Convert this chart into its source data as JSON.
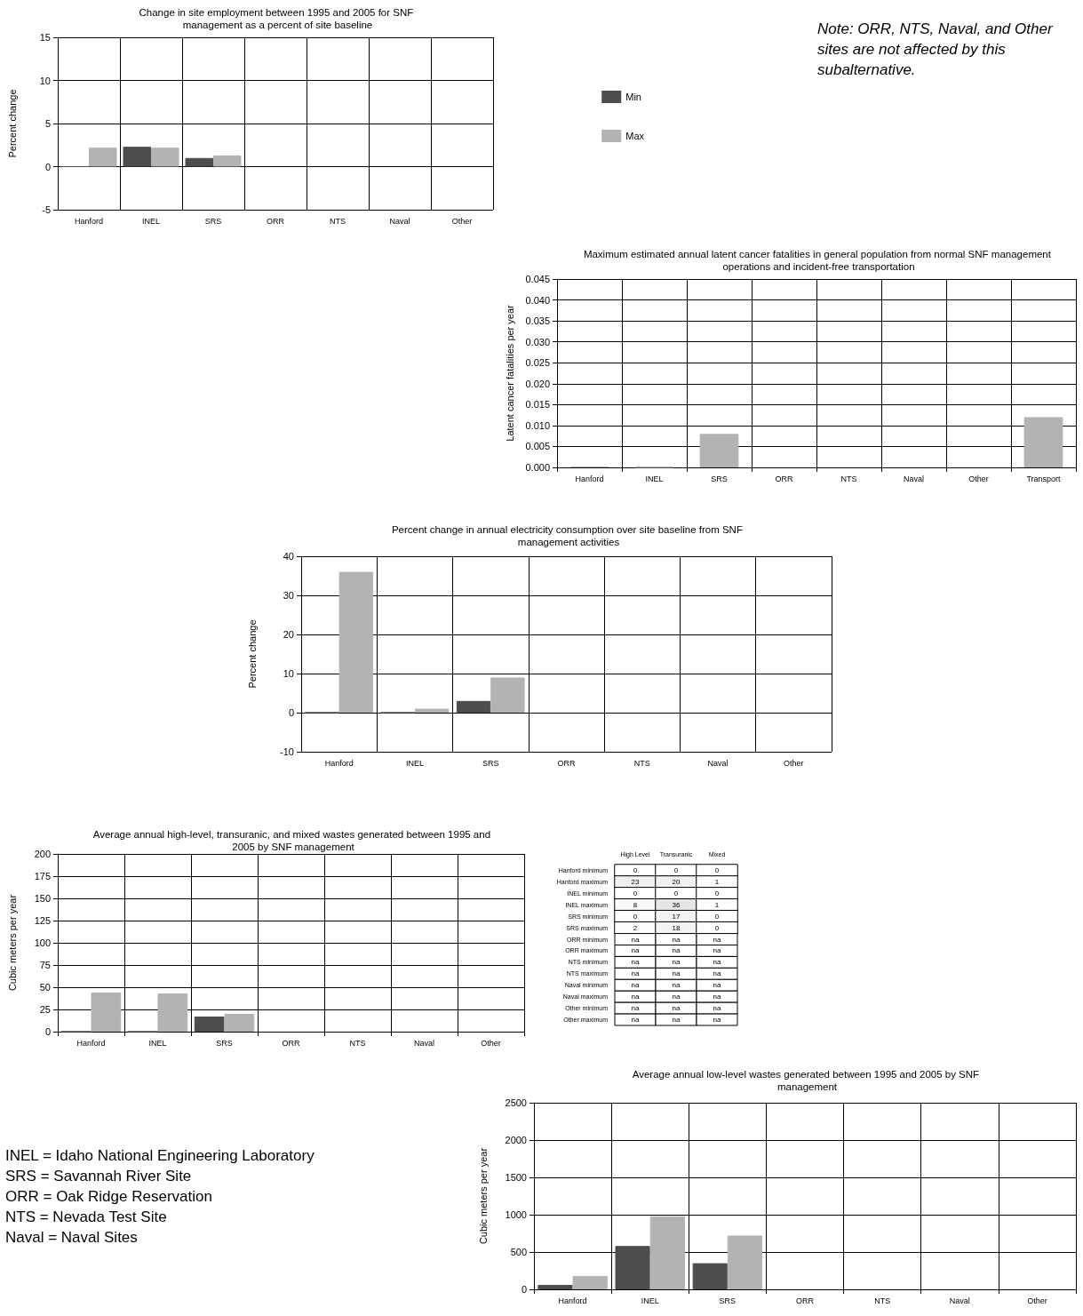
{
  "chart_data": [
    {
      "type": "bar",
      "title": "Change in site employment between 1995 and 2005 for SNF management as a percent of site baseline",
      "ylabel": "Percent change",
      "categories": [
        "Hanford",
        "INEL",
        "SRS",
        "ORR",
        "NTS",
        "Naval",
        "Other"
      ],
      "series": [
        {
          "name": "Min",
          "color": "#4d4d4d",
          "values": [
            0,
            2.3,
            1.0,
            null,
            null,
            null,
            null
          ]
        },
        {
          "name": "Max",
          "color": "#b3b3b3",
          "values": [
            2.2,
            2.2,
            1.3,
            null,
            null,
            null,
            null
          ]
        }
      ],
      "ylim": [
        -5,
        15
      ],
      "yticks": [
        -5,
        0,
        5,
        10,
        15
      ],
      "grid": true,
      "legend": "right"
    },
    {
      "type": "other",
      "annotations": [
        "Note: ORR, NTS, Naval, and Other sites are not affected by this subalternative."
      ]
    },
    {
      "type": "bar",
      "title": "Maximum estimated annual latent cancer fatalities in general population from normal SNF management operations and incident-free transportation",
      "ylabel": "Latent cancer fatalities per year",
      "categories": [
        "Hanford",
        "INEL",
        "SRS",
        "ORR",
        "NTS",
        "Naval",
        "Other",
        "Transport"
      ],
      "values": [
        0.0002,
        0.0001,
        0.008,
        null,
        null,
        null,
        null,
        0.012
      ],
      "color": "#b3b3b3",
      "ylim": [
        0,
        0.045
      ],
      "yticks": [
        {
          "value": 0,
          "label": "0.000"
        },
        {
          "value": 0.005,
          "label": "0.005"
        },
        {
          "value": 0.01,
          "label": "0.010"
        },
        {
          "value": 0.015,
          "label": "0.015"
        },
        {
          "value": 0.02,
          "label": "0.020"
        },
        {
          "value": 0.025,
          "label": "0.025"
        },
        {
          "value": 0.03,
          "label": "0.030"
        },
        {
          "value": 0.035,
          "label": "0.035"
        },
        {
          "value": 0.04,
          "label": "0.040"
        },
        {
          "value": 0.045,
          "label": "0.045"
        }
      ],
      "grid": true
    },
    {
      "type": "bar",
      "title": "Percent change in annual electricity consumption over site baseline from SNF management activities",
      "ylabel": "Percent change",
      "categories": [
        "Hanford",
        "INEL",
        "SRS",
        "ORR",
        "NTS",
        "Naval",
        "Other"
      ],
      "series": [
        {
          "color": "#4d4d4d",
          "values": [
            0,
            0,
            3,
            null,
            null,
            null,
            null
          ]
        },
        {
          "color": "#b3b3b3",
          "values": [
            36,
            1,
            9,
            null,
            null,
            null,
            null
          ]
        }
      ],
      "ylim": [
        -10,
        40
      ],
      "yticks": [
        -10,
        0,
        10,
        20,
        30,
        40
      ],
      "grid": true
    },
    {
      "type": "bar",
      "title": "Average annual high-level, transuranic, and mixed wastes generated between 1995 and 2005 by SNF management",
      "ylabel": "Cubic meters per year",
      "categories": [
        "Hanford",
        "INEL",
        "SRS",
        "ORR",
        "NTS",
        "Naval",
        "Other"
      ],
      "series": [
        {
          "color": "#4d4d4d",
          "values": [
            0,
            0,
            17,
            null,
            null,
            null,
            null
          ]
        },
        {
          "color": "#b3b3b3",
          "values": [
            44,
            43,
            20,
            null,
            null,
            null,
            null
          ]
        }
      ],
      "ylim": [
        0,
        200
      ],
      "yticks": [
        0,
        25,
        50,
        75,
        100,
        125,
        150,
        175,
        200
      ],
      "grid": true
    },
    {
      "type": "heatmap",
      "data_labels": true,
      "categories": [
        "High Level",
        "Transuranic",
        "Mixed"
      ],
      "y_categories": [
        "Hanford minimum",
        "Hanford maximum",
        "INEL minimum",
        "INEL maximum",
        "SRS minimum",
        "SRS maximum",
        "ORR minimum",
        "ORR maximum",
        "NTS minimum",
        "NTS maximum",
        "Naval minimum",
        "Naval maximum",
        "Other minimum",
        "Other maximum"
      ],
      "cells": [
        [
          0,
          0,
          0
        ],
        [
          23,
          20,
          1
        ],
        [
          0,
          0,
          0
        ],
        [
          8,
          36,
          1
        ],
        [
          0,
          17,
          0
        ],
        [
          2,
          18,
          0
        ],
        [
          null,
          null,
          null
        ],
        [
          null,
          null,
          null
        ],
        [
          null,
          null,
          null
        ],
        [
          null,
          null,
          null
        ],
        [
          null,
          null,
          null
        ],
        [
          null,
          null,
          null
        ],
        [
          null,
          null,
          null
        ],
        [
          null,
          null,
          null
        ]
      ],
      "cell_labels": [
        [
          "0",
          "0",
          "0"
        ],
        [
          "23",
          "20",
          "1"
        ],
        [
          "0",
          "0",
          "0"
        ],
        [
          "8",
          "36",
          "1"
        ],
        [
          "0",
          "17",
          "0"
        ],
        [
          "2",
          "18",
          "0"
        ],
        [
          "na",
          "na",
          "na"
        ],
        [
          "na",
          "na",
          "na"
        ],
        [
          "na",
          "na",
          "na"
        ],
        [
          "na",
          "na",
          "na"
        ],
        [
          "na",
          "na",
          "na"
        ],
        [
          "na",
          "na",
          "na"
        ],
        [
          "na",
          "na",
          "na"
        ],
        [
          "na",
          "na",
          "na"
        ]
      ]
    },
    {
      "type": "other",
      "annotations": [
        "INEL = Idaho National Engineering Laboratory",
        "SRS = Savannah River Site",
        "ORR = Oak Ridge Reservation",
        "NTS = Nevada Test Site",
        "Naval = Naval Sites"
      ]
    },
    {
      "type": "bar",
      "title": "Average annual low-level wastes generated between 1995 and 2005 by SNF management",
      "ylabel": "Cubic meters per year",
      "categories": [
        "Hanford",
        "INEL",
        "SRS",
        "ORR",
        "NTS",
        "Naval",
        "Other"
      ],
      "series": [
        {
          "color": "#4d4d4d",
          "values": [
            60,
            580,
            350,
            null,
            null,
            null,
            null
          ]
        },
        {
          "color": "#b3b3b3",
          "values": [
            180,
            980,
            720,
            null,
            null,
            null,
            null
          ]
        }
      ],
      "ylim": [
        0,
        2500
      ],
      "yticks": [
        0,
        500,
        1000,
        1500,
        2000,
        2500
      ],
      "grid": true
    }
  ]
}
